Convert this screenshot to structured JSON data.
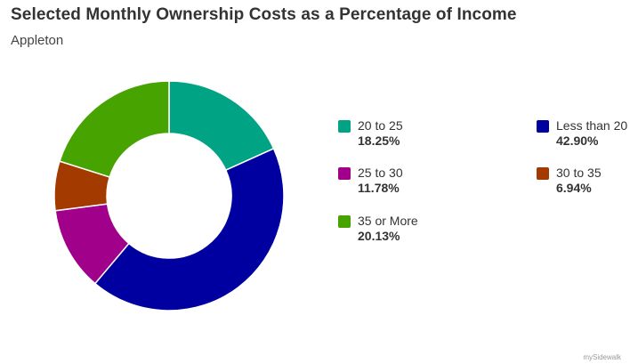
{
  "header": {
    "title": "Selected Monthly Ownership Costs as a Percentage of Income",
    "subtitle": "Appleton"
  },
  "watermark": "mySidewalk",
  "chart_data": {
    "type": "pie",
    "donut": true,
    "title": "Selected Monthly Ownership Costs as a Percentage of Income",
    "subtitle": "Appleton",
    "legend_position": "right",
    "slices": [
      {
        "label": "20 to 25",
        "value": 18.25,
        "display": "18.25%",
        "color": "#00a383"
      },
      {
        "label": "Less than 20",
        "value": 42.9,
        "display": "42.90%",
        "color": "#0000a0"
      },
      {
        "label": "25 to 30",
        "value": 11.78,
        "display": "11.78%",
        "color": "#a0008a"
      },
      {
        "label": "30 to 35",
        "value": 6.94,
        "display": "6.94%",
        "color": "#a33a00"
      },
      {
        "label": "35 or More",
        "value": 20.13,
        "display": "20.13%",
        "color": "#46a300"
      }
    ]
  }
}
